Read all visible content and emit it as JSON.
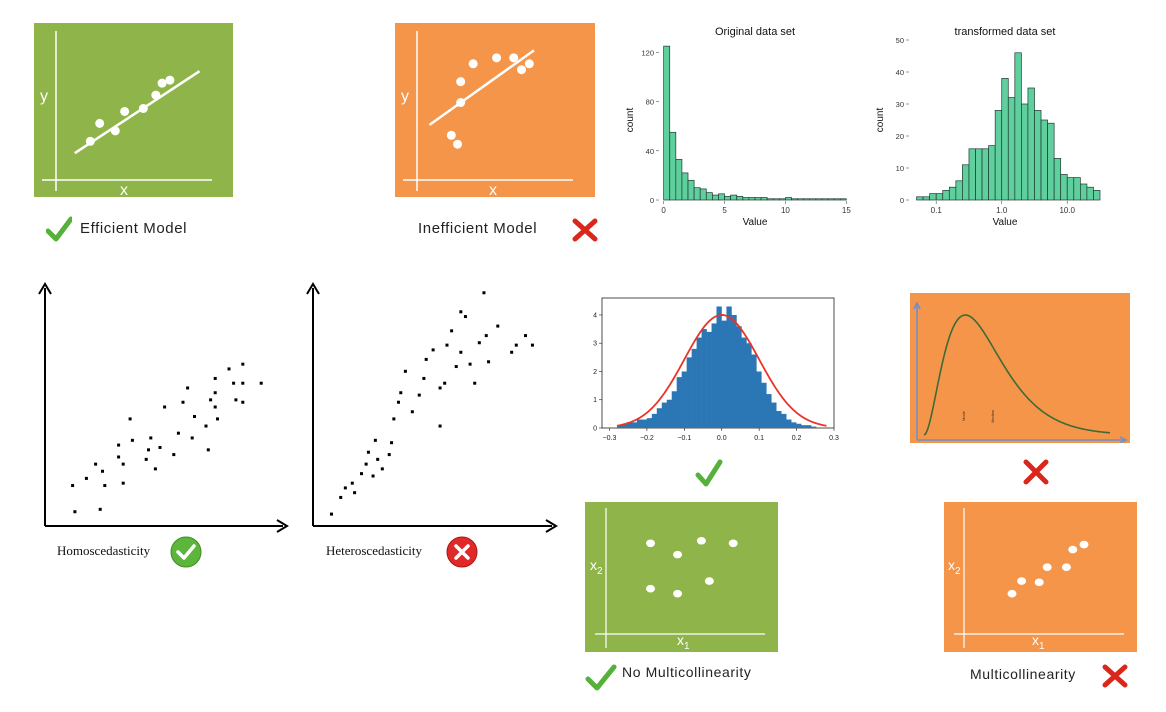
{
  "colors": {
    "green_panel": "#8FB54A",
    "orange_panel": "#F4954A",
    "teal_bar": "#5FCF9E",
    "blue_bar": "#2B77B5",
    "fit_red": "#E8342A",
    "mark_red": "#D9281B",
    "check_green": "#55B13A"
  },
  "icons": {
    "check": "check-icon",
    "cross": "cross-icon",
    "check_circle": "check-circle-icon",
    "cross_circle": "cross-circle-icon"
  },
  "efficient_panel": {
    "x_label": "x",
    "y_label": "y",
    "caption": "Efficient Model"
  },
  "inefficient_panel": {
    "x_label": "x",
    "y_label": "y",
    "caption": "Inefficient Model"
  },
  "homo_panel": {
    "caption": "Homoscedasticity"
  },
  "hetero_panel": {
    "caption": "Heteroscedasticity"
  },
  "nomc_panel": {
    "x_label": "x",
    "x_sub": "1",
    "y_label": "x",
    "y_sub": "2",
    "caption": "No Multicollinearity"
  },
  "mc_panel": {
    "x_label": "x",
    "x_sub": "1",
    "y_label": "x",
    "y_sub": "2",
    "caption": "Multicollinearity"
  },
  "skew_panel": {
    "mode_label": "Mode",
    "median_label": "Median"
  },
  "chart_data": [
    {
      "type": "bar",
      "title": "Original data set",
      "xlabel": "Value",
      "ylabel": "count",
      "x_ticks": [
        0,
        5,
        10,
        15
      ],
      "y_ticks": [
        0,
        40,
        80,
        120
      ],
      "xlim": [
        0,
        15
      ],
      "ylim": [
        0,
        130
      ],
      "bin_width": 0.5,
      "values": [
        125,
        55,
        33,
        22,
        16,
        10,
        9,
        6,
        4,
        5,
        3,
        4,
        3,
        2,
        2,
        2,
        2,
        1,
        1,
        1,
        2,
        1,
        1,
        1,
        1,
        1,
        1,
        1,
        1,
        1
      ]
    },
    {
      "type": "bar",
      "title": "transformed data set",
      "xlabel": "Value",
      "ylabel": "count",
      "log_x": true,
      "x_ticks": [
        0.1,
        1.0,
        10.0
      ],
      "x_tick_labels": [
        "0.1",
        "1.0",
        "10.0"
      ],
      "y_ticks": [
        0,
        10,
        20,
        30,
        40,
        50
      ],
      "ylim": [
        0,
        50
      ],
      "bins_log10_start": -1.3,
      "bins_log10_width": 0.1,
      "values": [
        1,
        1,
        2,
        2,
        3,
        4,
        6,
        11,
        16,
        16,
        16,
        17,
        28,
        38,
        32,
        46,
        30,
        35,
        28,
        25,
        24,
        13,
        8,
        7,
        7,
        5,
        4,
        3
      ]
    },
    {
      "type": "bar",
      "title": "",
      "xlabel": "",
      "ylabel": "",
      "x_ticks": [
        -0.3,
        -0.2,
        -0.1,
        0.0,
        0.1,
        0.2,
        0.3
      ],
      "y_ticks": [
        0,
        1,
        2,
        3,
        4
      ],
      "xlim": [
        -0.32,
        0.3
      ],
      "ylim": [
        0,
        4.6
      ],
      "bins_start": -0.28,
      "bin_width": 0.0133,
      "values": [
        0.1,
        0.15,
        0.2,
        0.2,
        0.3,
        0.3,
        0.35,
        0.5,
        0.7,
        0.9,
        1.0,
        1.3,
        1.8,
        2.0,
        2.5,
        2.8,
        3.2,
        3.5,
        3.4,
        3.7,
        4.3,
        3.8,
        4.3,
        4.0,
        3.6,
        3.2,
        3.0,
        2.6,
        2.0,
        1.6,
        1.2,
        0.9,
        0.6,
        0.5,
        0.3,
        0.2,
        0.15,
        0.1,
        0.1,
        0.05
      ],
      "fit": {
        "name": "normal fit",
        "mean": 0.0,
        "sd": 0.1,
        "peak": 4.0
      }
    },
    {
      "type": "scatter",
      "name": "efficient",
      "x": [
        0.22,
        0.28,
        0.38,
        0.44,
        0.56,
        0.64,
        0.68,
        0.73
      ],
      "y": [
        0.26,
        0.38,
        0.33,
        0.46,
        0.48,
        0.57,
        0.65,
        0.67
      ],
      "fit_line": [
        [
          0.12,
          0.18
        ],
        [
          0.92,
          0.73
        ]
      ]
    },
    {
      "type": "scatter",
      "name": "inefficient",
      "x": [
        0.22,
        0.26,
        0.28,
        0.28,
        0.36,
        0.51,
        0.62,
        0.67,
        0.72
      ],
      "y": [
        0.3,
        0.24,
        0.52,
        0.66,
        0.78,
        0.82,
        0.82,
        0.74,
        0.78
      ],
      "fit_line": [
        [
          0.08,
          0.37
        ],
        [
          0.75,
          0.87
        ]
      ]
    },
    {
      "type": "scatter",
      "name": "homoscedastic",
      "x": [
        0.12,
        0.13,
        0.18,
        0.22,
        0.24,
        0.25,
        0.26,
        0.32,
        0.32,
        0.34,
        0.34,
        0.37,
        0.38,
        0.44,
        0.45,
        0.46,
        0.48,
        0.5,
        0.52,
        0.56,
        0.58,
        0.6,
        0.62,
        0.64,
        0.65,
        0.7,
        0.71,
        0.72,
        0.74,
        0.74,
        0.74,
        0.75,
        0.8,
        0.82,
        0.83,
        0.86,
        0.86,
        0.86,
        0.94
      ],
      "y": [
        0.17,
        0.06,
        0.2,
        0.26,
        0.07,
        0.23,
        0.17,
        0.34,
        0.29,
        0.18,
        0.26,
        0.45,
        0.36,
        0.28,
        0.32,
        0.37,
        0.24,
        0.33,
        0.5,
        0.3,
        0.39,
        0.52,
        0.58,
        0.37,
        0.46,
        0.42,
        0.32,
        0.53,
        0.62,
        0.56,
        0.5,
        0.45,
        0.66,
        0.6,
        0.53,
        0.68,
        0.6,
        0.52,
        0.6
      ]
    },
    {
      "type": "scatter",
      "name": "heteroscedastic",
      "x": [
        0.08,
        0.12,
        0.14,
        0.17,
        0.18,
        0.21,
        0.23,
        0.24,
        0.26,
        0.27,
        0.28,
        0.3,
        0.33,
        0.34,
        0.35,
        0.37,
        0.38,
        0.4,
        0.43,
        0.46,
        0.48,
        0.49,
        0.52,
        0.55,
        0.55,
        0.57,
        0.58,
        0.6,
        0.62,
        0.64,
        0.64,
        0.66,
        0.68,
        0.7,
        0.72,
        0.74,
        0.75,
        0.76,
        0.8,
        0.86,
        0.88,
        0.92,
        0.95
      ],
      "y": [
        0.05,
        0.12,
        0.16,
        0.18,
        0.14,
        0.22,
        0.26,
        0.31,
        0.21,
        0.36,
        0.28,
        0.24,
        0.3,
        0.35,
        0.45,
        0.52,
        0.56,
        0.65,
        0.48,
        0.55,
        0.62,
        0.7,
        0.74,
        0.42,
        0.58,
        0.6,
        0.76,
        0.82,
        0.67,
        0.73,
        0.9,
        0.88,
        0.68,
        0.6,
        0.77,
        0.98,
        0.8,
        0.69,
        0.84,
        0.73,
        0.76,
        0.8,
        0.76
      ]
    },
    {
      "type": "scatter",
      "name": "no-multicollinearity",
      "x": [
        0.28,
        0.28,
        0.45,
        0.45,
        0.6,
        0.65,
        0.8
      ],
      "y": [
        0.72,
        0.36,
        0.63,
        0.32,
        0.74,
        0.42,
        0.72
      ]
    },
    {
      "type": "scatter",
      "name": "multicollinearity",
      "x": [
        0.3,
        0.36,
        0.47,
        0.52,
        0.64,
        0.68,
        0.75
      ],
      "y": [
        0.32,
        0.42,
        0.41,
        0.53,
        0.53,
        0.67,
        0.71
      ]
    },
    {
      "type": "line",
      "name": "right-skewed density",
      "shape": {
        "mode": 0.23,
        "tail_end": 0.98
      }
    }
  ]
}
